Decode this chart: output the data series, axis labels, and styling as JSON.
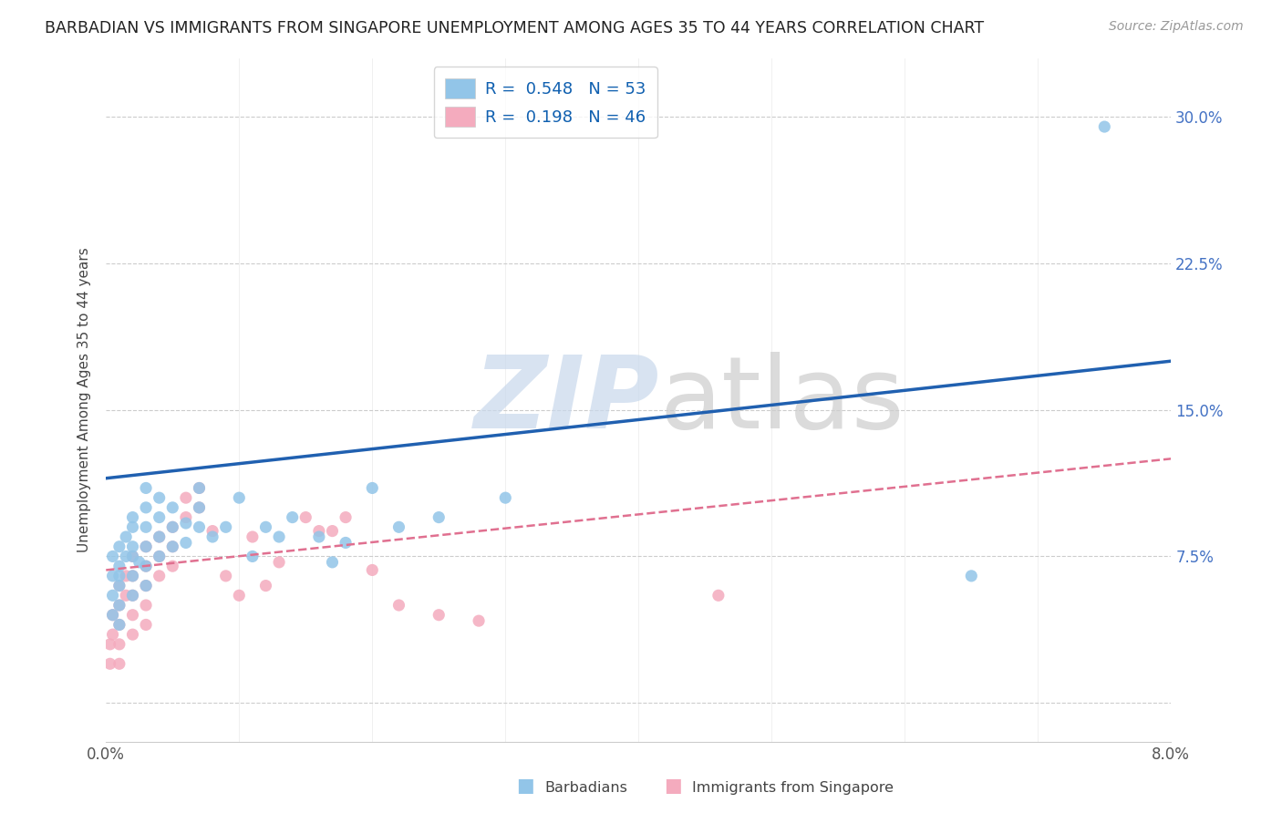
{
  "title": "BARBADIAN VS IMMIGRANTS FROM SINGAPORE UNEMPLOYMENT AMONG AGES 35 TO 44 YEARS CORRELATION CHART",
  "source": "Source: ZipAtlas.com",
  "ylabel": "Unemployment Among Ages 35 to 44 years",
  "xlim": [
    0.0,
    0.08
  ],
  "ylim": [
    -0.02,
    0.33
  ],
  "xtick_positions": [
    0.0,
    0.01,
    0.02,
    0.03,
    0.04,
    0.05,
    0.06,
    0.07,
    0.08
  ],
  "xticklabels": [
    "0.0%",
    "",
    "",
    "",
    "",
    "",
    "",
    "",
    "8.0%"
  ],
  "ytick_positions": [
    0.0,
    0.075,
    0.15,
    0.225,
    0.3
  ],
  "yticklabels_right": [
    "",
    "7.5%",
    "15.0%",
    "22.5%",
    "30.0%"
  ],
  "blue_color": "#92C5E8",
  "pink_color": "#F4ABBE",
  "blue_line_color": "#2060B0",
  "pink_line_color": "#E07090",
  "legend_text1": "R =  0.548   N = 53",
  "legend_text2": "R =  0.198   N = 46",
  "blue_line_x": [
    0.0,
    0.08
  ],
  "blue_line_y": [
    0.115,
    0.175
  ],
  "pink_line_x": [
    0.0,
    0.08
  ],
  "pink_line_y": [
    0.068,
    0.125
  ],
  "blue_scatter_x": [
    0.0005,
    0.0005,
    0.0005,
    0.0005,
    0.001,
    0.001,
    0.001,
    0.001,
    0.001,
    0.001,
    0.0015,
    0.0015,
    0.002,
    0.002,
    0.002,
    0.002,
    0.002,
    0.002,
    0.0025,
    0.003,
    0.003,
    0.003,
    0.003,
    0.003,
    0.003,
    0.004,
    0.004,
    0.004,
    0.004,
    0.005,
    0.005,
    0.005,
    0.006,
    0.006,
    0.007,
    0.007,
    0.007,
    0.008,
    0.009,
    0.01,
    0.011,
    0.012,
    0.013,
    0.014,
    0.016,
    0.017,
    0.018,
    0.02,
    0.022,
    0.025,
    0.03,
    0.075,
    0.065
  ],
  "blue_scatter_y": [
    0.055,
    0.065,
    0.075,
    0.045,
    0.07,
    0.08,
    0.065,
    0.06,
    0.05,
    0.04,
    0.075,
    0.085,
    0.055,
    0.065,
    0.075,
    0.08,
    0.09,
    0.095,
    0.072,
    0.06,
    0.07,
    0.08,
    0.09,
    0.1,
    0.11,
    0.075,
    0.085,
    0.095,
    0.105,
    0.08,
    0.09,
    0.1,
    0.082,
    0.092,
    0.09,
    0.1,
    0.11,
    0.085,
    0.09,
    0.105,
    0.075,
    0.09,
    0.085,
    0.095,
    0.085,
    0.072,
    0.082,
    0.11,
    0.09,
    0.095,
    0.105,
    0.295,
    0.065
  ],
  "pink_scatter_x": [
    0.0003,
    0.0003,
    0.0005,
    0.0005,
    0.001,
    0.001,
    0.001,
    0.001,
    0.001,
    0.0015,
    0.0015,
    0.002,
    0.002,
    0.002,
    0.002,
    0.002,
    0.003,
    0.003,
    0.003,
    0.003,
    0.003,
    0.004,
    0.004,
    0.004,
    0.005,
    0.005,
    0.005,
    0.006,
    0.006,
    0.007,
    0.007,
    0.008,
    0.009,
    0.01,
    0.011,
    0.012,
    0.013,
    0.015,
    0.016,
    0.017,
    0.018,
    0.02,
    0.022,
    0.025,
    0.028,
    0.046
  ],
  "pink_scatter_y": [
    0.03,
    0.02,
    0.045,
    0.035,
    0.06,
    0.05,
    0.04,
    0.03,
    0.02,
    0.065,
    0.055,
    0.075,
    0.065,
    0.055,
    0.045,
    0.035,
    0.08,
    0.07,
    0.06,
    0.05,
    0.04,
    0.085,
    0.075,
    0.065,
    0.09,
    0.08,
    0.07,
    0.105,
    0.095,
    0.11,
    0.1,
    0.088,
    0.065,
    0.055,
    0.085,
    0.06,
    0.072,
    0.095,
    0.088,
    0.088,
    0.095,
    0.068,
    0.05,
    0.045,
    0.042,
    0.055
  ],
  "background_color": "#ffffff",
  "grid_color": "#cccccc",
  "ytick_color": "#4472C4",
  "xtick_color": "#555555"
}
